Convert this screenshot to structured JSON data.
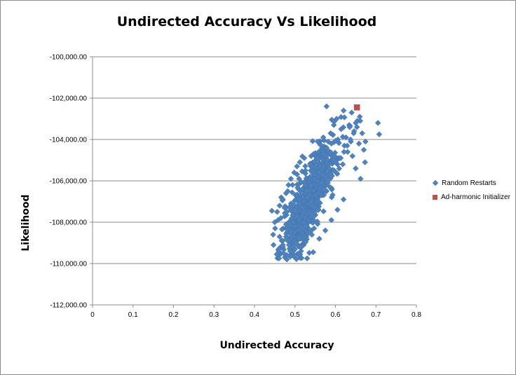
{
  "chart_data": {
    "type": "scatter",
    "title": "Undirected Accuracy Vs Likelihood",
    "xlabel": "Undirected Accuracy",
    "ylabel": "Likelihood",
    "xlim": [
      0,
      0.8
    ],
    "ylim": [
      -112000,
      -100000
    ],
    "x_ticks": [
      "0",
      "0.1",
      "0.2",
      "0.3",
      "0.4",
      "0.5",
      "0.6",
      "0.7",
      "0.8"
    ],
    "y_ticks": [
      "-100,000.00",
      "-102,000.00",
      "-104,000.00",
      "-106,000.00",
      "-108,000.00",
      "-110,000.00",
      "-112,000.00"
    ],
    "gridlines": "horizontal",
    "legend_position": "right",
    "series": [
      {
        "name": "Random Restarts",
        "marker": "diamond",
        "color": "#4f81bd",
        "points_count_note": "",
        "x": [
          0.443,
          0.447,
          0.451,
          0.455,
          0.458,
          0.462,
          0.466,
          0.47,
          0.474,
          0.478,
          0.482,
          0.486,
          0.49,
          0.494,
          0.498,
          0.502,
          0.506,
          0.51,
          0.514,
          0.518,
          0.522,
          0.526,
          0.53,
          0.534,
          0.538,
          0.542,
          0.546,
          0.55,
          0.554,
          0.558,
          0.562,
          0.566,
          0.57,
          0.574,
          0.578,
          0.582,
          0.586,
          0.59,
          0.594,
          0.598,
          0.602,
          0.606,
          0.61,
          0.614,
          0.618,
          0.622,
          0.626,
          0.63,
          0.634,
          0.638,
          0.642,
          0.646,
          0.65,
          0.654,
          0.658,
          0.662,
          0.666,
          0.67,
          0.674,
          0.578,
          0.62,
          0.64,
          0.66,
          0.705,
          0.708,
          0.673,
          0.65,
          0.635,
          0.603,
          0.596,
          0.588,
          0.57,
          0.556,
          0.546,
          0.54,
          0.523,
          0.512,
          0.505,
          0.498,
          0.49,
          0.484,
          0.478,
          0.47,
          0.462,
          0.456,
          0.45,
          0.446,
          0.46,
          0.472,
          0.48,
          0.488,
          0.495,
          0.503,
          0.51,
          0.518,
          0.526,
          0.533,
          0.541,
          0.549,
          0.557,
          0.565,
          0.573,
          0.581,
          0.589,
          0.597,
          0.605,
          0.613,
          0.621,
          0.629,
          0.637,
          0.645,
          0.653,
          0.661,
          0.53,
          0.515,
          0.5,
          0.485,
          0.47,
          0.545,
          0.56,
          0.575,
          0.59,
          0.605,
          0.62,
          0.6,
          0.585,
          0.57,
          0.555,
          0.54,
          0.525,
          0.51,
          0.495,
          0.48,
          0.465,
          0.54,
          0.55,
          0.56,
          0.52,
          0.53,
          0.51,
          0.5,
          0.49,
          0.48,
          0.47,
          0.46,
          0.58,
          0.57,
          0.56,
          0.55,
          0.54,
          0.53,
          0.52,
          0.51,
          0.5
        ],
        "y": [
          -107450,
          -109100,
          -108300,
          -109550,
          -107900,
          -108700,
          -106800,
          -109200,
          -107300,
          -108100,
          -106500,
          -108900,
          -107100,
          -106200,
          -108500,
          -106900,
          -107700,
          -105900,
          -107200,
          -106400,
          -108000,
          -105500,
          -106800,
          -107500,
          -105200,
          -106300,
          -107900,
          -105700,
          -104900,
          -106600,
          -105300,
          -106100,
          -104700,
          -105800,
          -104400,
          -105500,
          -106300,
          -104200,
          -105000,
          -104800,
          -105600,
          -104000,
          -104900,
          -103500,
          -105200,
          -104300,
          -103900,
          -104600,
          -103300,
          -104100,
          -104800,
          -103600,
          -105400,
          -103100,
          -104200,
          -105900,
          -103700,
          -104500,
          -104100,
          -102400,
          -102600,
          -102700,
          -102900,
          -103200,
          -103750,
          -105100,
          -103200,
          -103400,
          -103000,
          -103300,
          -103700,
          -103900,
          -104100,
          -104700,
          -104800,
          -104900,
          -105100,
          -105300,
          -105600,
          -105900,
          -106200,
          -106600,
          -106900,
          -107200,
          -107500,
          -108000,
          -108600,
          -109300,
          -109500,
          -109800,
          -109400,
          -109200,
          -109000,
          -108800,
          -108500,
          -108200,
          -107900,
          -107600,
          -107300,
          -107000,
          -106700,
          -106400,
          -106100,
          -105800,
          -105500,
          -105200,
          -104900,
          -104600,
          -104300,
          -104000,
          -103700,
          -103400,
          -103100,
          -109750,
          -109400,
          -109300,
          -109100,
          -108900,
          -109450,
          -108800,
          -108400,
          -107900,
          -107400,
          -106900,
          -105100,
          -105400,
          -105700,
          -106000,
          -106300,
          -106600,
          -106900,
          -107200,
          -107500,
          -107800,
          -107000,
          -106700,
          -106400,
          -107300,
          -107600,
          -107900,
          -108200,
          -108500,
          -108800,
          -109100,
          -109400,
          -105000,
          -105300,
          -105600,
          -105900,
          -106200,
          -106500,
          -106800,
          -107100,
          -107400
        ]
      },
      {
        "name": "Ad-harmonic Initializer",
        "marker": "square",
        "color": "#c0504d",
        "x": [
          0.653
        ],
        "y": [
          -102450
        ]
      }
    ]
  }
}
